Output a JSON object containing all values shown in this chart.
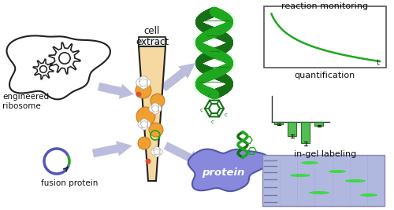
{
  "bg_color": "#ffffff",
  "green": "#1fa81f",
  "dark_green": "#157015",
  "light_green": "#7de87d",
  "arrow_color": "#9999cc",
  "protein_color": "#8888dd",
  "protein_edge": "#5555aa",
  "gel_bg": "#b0b8e0",
  "gel_green": "#33cc33",
  "bar_green": "#55bb55",
  "bar_edge": "#227722",
  "text_color": "#111111",
  "label_reaction": "reaction monitoring",
  "label_quant": "quantification",
  "label_gel": "in-gel labeling",
  "label_cell": "cell\nextract",
  "label_eng": "engineered\nribosome",
  "label_fusion": "fusion protein",
  "label_protein": "protein",
  "label_t": "t",
  "tube_fill": "#f5d9a0",
  "tube_outline": "#222222",
  "ribosome_outline": "#222222",
  "fp_blue": "#5555bb",
  "fp_green": "#22aa22"
}
